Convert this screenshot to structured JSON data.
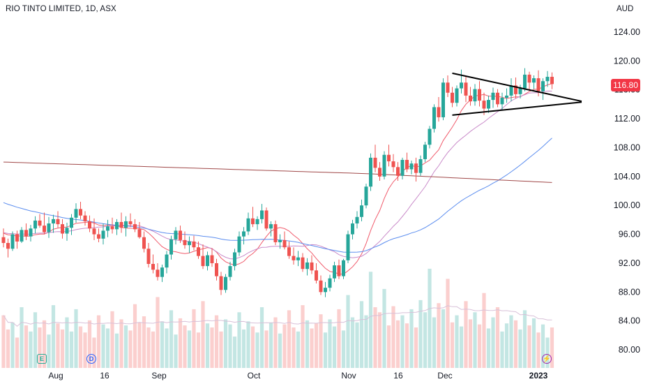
{
  "header": {
    "title": "RIO TINTO LIMITED, 1D, ASX",
    "currency": "AUD"
  },
  "last_price": "116.80",
  "events": {
    "earnings": "E",
    "dividend": "D"
  },
  "colors": {
    "up": "#26a69a",
    "down": "#ef5350",
    "ma10": "#f05a6b",
    "ma20": "#c98ac9",
    "ma50": "#5b8def",
    "ma200": "#a04848",
    "badge": "#f23645"
  },
  "chart_data": {
    "type": "candlestick",
    "y_axis": {
      "ticks": [
        "124.00",
        "120.00",
        "116.00",
        "112.00",
        "108.00",
        "104.00",
        "100.00",
        "96.00",
        "92.00",
        "88.00",
        "84.00",
        "80.00"
      ],
      "ylim": [
        77.5,
        126.5
      ],
      "position": "right"
    },
    "x_axis": {
      "ticks": [
        "Aug",
        "16",
        "Sep",
        "Oct",
        "Nov",
        "16",
        "Dec",
        "2023"
      ]
    },
    "candles": [
      [
        95.6,
        96.8,
        94.2,
        94.8
      ],
      [
        94.8,
        95.4,
        92.8,
        94.0
      ],
      [
        94.0,
        96.4,
        93.7,
        96.0
      ],
      [
        96.0,
        96.5,
        94.0,
        95.0
      ],
      [
        95.0,
        97.0,
        94.8,
        96.6
      ],
      [
        96.6,
        97.5,
        95.2,
        95.7
      ],
      [
        95.7,
        97.3,
        95.0,
        96.8
      ],
      [
        96.8,
        98.5,
        96.1,
        97.9
      ],
      [
        97.9,
        98.8,
        96.9,
        97.2
      ],
      [
        97.2,
        99.0,
        96.0,
        96.3
      ],
      [
        96.3,
        98.4,
        95.5,
        97.5
      ],
      [
        97.5,
        98.7,
        96.2,
        98.1
      ],
      [
        98.1,
        99.2,
        96.9,
        97.4
      ],
      [
        97.4,
        98.1,
        95.4,
        96.1
      ],
      [
        96.1,
        97.6,
        95.1,
        96.9
      ],
      [
        96.9,
        98.8,
        95.9,
        98.3
      ],
      [
        98.3,
        100.3,
        97.6,
        99.5
      ],
      [
        99.5,
        100.5,
        98.1,
        98.6
      ],
      [
        98.6,
        99.2,
        97.2,
        97.8
      ],
      [
        97.8,
        98.6,
        96.3,
        96.8
      ],
      [
        96.8,
        98.2,
        95.2,
        96.0
      ],
      [
        96.0,
        96.8,
        94.9,
        95.4
      ],
      [
        95.4,
        97.5,
        94.6,
        96.5
      ],
      [
        96.5,
        98.0,
        95.6,
        97.1
      ],
      [
        97.1,
        98.3,
        96.1,
        96.7
      ],
      [
        96.7,
        98.1,
        95.9,
        97.7
      ],
      [
        97.7,
        99.0,
        96.2,
        96.9
      ],
      [
        96.9,
        98.5,
        95.7,
        97.8
      ],
      [
        97.8,
        98.9,
        97.0,
        97.4
      ],
      [
        97.4,
        98.1,
        96.3,
        96.7
      ],
      [
        96.7,
        97.7,
        95.4,
        95.6
      ],
      [
        95.6,
        96.4,
        93.5,
        94.0
      ],
      [
        94.0,
        94.8,
        91.4,
        91.9
      ],
      [
        91.9,
        93.2,
        90.6,
        91.1
      ],
      [
        91.1,
        92.0,
        89.6,
        90.1
      ],
      [
        90.1,
        91.8,
        89.4,
        91.4
      ],
      [
        91.4,
        93.7,
        90.6,
        93.2
      ],
      [
        93.2,
        95.8,
        92.5,
        95.3
      ],
      [
        95.3,
        97.0,
        94.6,
        96.5
      ],
      [
        96.5,
        97.2,
        94.8,
        95.2
      ],
      [
        95.2,
        96.4,
        94.0,
        94.5
      ],
      [
        94.5,
        95.7,
        93.4,
        95.0
      ],
      [
        95.0,
        95.8,
        93.8,
        94.2
      ],
      [
        94.2,
        95.0,
        92.6,
        93.0
      ],
      [
        93.0,
        94.6,
        91.2,
        91.6
      ],
      [
        91.6,
        93.6,
        91.0,
        93.1
      ],
      [
        93.1,
        94.0,
        91.5,
        92.0
      ],
      [
        92.0,
        92.6,
        89.6,
        90.2
      ],
      [
        90.2,
        90.8,
        87.6,
        88.3
      ],
      [
        88.3,
        90.5,
        87.9,
        90.1
      ],
      [
        90.1,
        92.2,
        89.6,
        91.6
      ],
      [
        91.6,
        94.0,
        91.0,
        93.5
      ],
      [
        93.5,
        96.4,
        93.0,
        95.7
      ],
      [
        95.7,
        97.0,
        94.6,
        96.4
      ],
      [
        96.4,
        99.0,
        95.9,
        98.2
      ],
      [
        98.2,
        99.8,
        97.0,
        97.4
      ],
      [
        97.4,
        98.5,
        96.6,
        98.1
      ],
      [
        98.1,
        100.2,
        97.5,
        99.3
      ],
      [
        99.3,
        99.7,
        96.5,
        96.8
      ],
      [
        96.8,
        97.8,
        95.7,
        97.4
      ],
      [
        97.4,
        97.9,
        94.5,
        94.9
      ],
      [
        94.9,
        96.0,
        94.0,
        95.2
      ],
      [
        95.2,
        96.4,
        93.9,
        94.2
      ],
      [
        94.2,
        95.0,
        92.6,
        93.0
      ],
      [
        93.0,
        94.2,
        91.8,
        92.4
      ],
      [
        92.4,
        93.7,
        91.6,
        92.8
      ],
      [
        92.8,
        93.4,
        90.8,
        91.2
      ],
      [
        91.2,
        92.7,
        90.3,
        92.1
      ],
      [
        92.1,
        93.1,
        90.5,
        91.0
      ],
      [
        91.0,
        92.0,
        89.2,
        89.6
      ],
      [
        89.6,
        90.3,
        87.6,
        88.0
      ],
      [
        88.0,
        89.4,
        87.3,
        88.6
      ],
      [
        88.6,
        90.4,
        88.1,
        89.9
      ],
      [
        89.9,
        92.2,
        89.4,
        91.7
      ],
      [
        91.7,
        92.5,
        89.8,
        90.2
      ],
      [
        90.2,
        92.6,
        89.8,
        92.4
      ],
      [
        92.4,
        96.5,
        92.0,
        96.0
      ],
      [
        96.0,
        98.0,
        95.3,
        97.5
      ],
      [
        97.5,
        99.2,
        96.8,
        98.4
      ],
      [
        98.4,
        100.8,
        97.8,
        100.0
      ],
      [
        100.0,
        103.0,
        99.6,
        102.6
      ],
      [
        102.6,
        107.2,
        102.0,
        106.6
      ],
      [
        106.6,
        108.4,
        104.6,
        105.2
      ],
      [
        105.2,
        106.0,
        103.4,
        104.0
      ],
      [
        104.0,
        107.5,
        103.6,
        107.0
      ],
      [
        107.0,
        108.4,
        105.4,
        106.1
      ],
      [
        106.1,
        107.1,
        104.6,
        105.3
      ],
      [
        105.3,
        106.0,
        103.4,
        104.1
      ],
      [
        104.1,
        106.6,
        103.6,
        106.3
      ],
      [
        106.3,
        107.3,
        104.6,
        105.0
      ],
      [
        105.0,
        106.2,
        104.3,
        105.8
      ],
      [
        105.8,
        106.6,
        103.3,
        104.5
      ],
      [
        104.5,
        106.9,
        104.1,
        106.4
      ],
      [
        106.4,
        108.8,
        106.0,
        108.4
      ],
      [
        108.4,
        111.0,
        107.9,
        110.6
      ],
      [
        110.6,
        114.0,
        110.1,
        113.6
      ],
      [
        113.6,
        115.0,
        111.6,
        112.2
      ],
      [
        112.2,
        117.6,
        111.8,
        117.0
      ],
      [
        117.0,
        118.0,
        115.0,
        115.6
      ],
      [
        115.6,
        116.4,
        113.6,
        114.2
      ],
      [
        114.2,
        116.6,
        113.7,
        116.2
      ],
      [
        116.2,
        118.8,
        115.5,
        117.0
      ],
      [
        117.0,
        117.8,
        114.3,
        115.2
      ],
      [
        115.2,
        116.4,
        113.8,
        114.4
      ],
      [
        114.4,
        116.8,
        113.8,
        116.1
      ],
      [
        116.1,
        117.2,
        113.7,
        114.5
      ],
      [
        114.5,
        115.6,
        112.5,
        113.4
      ],
      [
        113.4,
        115.2,
        112.8,
        114.6
      ],
      [
        114.6,
        116.3,
        113.5,
        115.6
      ],
      [
        115.6,
        116.1,
        113.6,
        114.0
      ],
      [
        114.0,
        115.6,
        113.2,
        114.9
      ],
      [
        114.9,
        116.2,
        114.2,
        115.2
      ],
      [
        115.2,
        117.6,
        114.4,
        116.6
      ],
      [
        116.6,
        117.7,
        114.8,
        115.4
      ],
      [
        115.4,
        116.7,
        114.8,
        116.2
      ],
      [
        116.2,
        119.0,
        115.8,
        118.1
      ],
      [
        118.1,
        118.5,
        116.0,
        117.0
      ],
      [
        117.0,
        118.0,
        116.1,
        117.6
      ],
      [
        117.6,
        118.7,
        115.1,
        115.8
      ],
      [
        115.8,
        117.6,
        114.6,
        117.2
      ],
      [
        117.2,
        118.6,
        116.4,
        117.8
      ],
      [
        117.8,
        118.4,
        116.1,
        116.8
      ]
    ],
    "volume": [
      0.52,
      0.38,
      0.45,
      0.3,
      0.6,
      0.42,
      0.36,
      0.55,
      0.4,
      0.47,
      0.33,
      0.62,
      0.44,
      0.38,
      0.5,
      0.36,
      0.58,
      0.41,
      0.35,
      0.47,
      0.3,
      0.52,
      0.43,
      0.39,
      0.56,
      0.34,
      0.48,
      0.42,
      0.37,
      0.63,
      0.45,
      0.51,
      0.4,
      0.36,
      0.7,
      0.46,
      0.39,
      0.57,
      0.33,
      0.49,
      0.42,
      0.37,
      0.58,
      0.35,
      0.66,
      0.44,
      0.4,
      0.52,
      0.36,
      0.48,
      0.43,
      0.31,
      0.55,
      0.38,
      0.46,
      0.41,
      0.35,
      0.6,
      0.37,
      0.45,
      0.5,
      0.34,
      0.43,
      0.57,
      0.4,
      0.36,
      0.62,
      0.47,
      0.39,
      0.44,
      0.53,
      0.35,
      0.48,
      0.41,
      0.58,
      0.37,
      0.72,
      0.5,
      0.45,
      0.66,
      0.52,
      0.95,
      0.6,
      0.55,
      0.78,
      0.42,
      0.61,
      0.47,
      0.52,
      0.44,
      0.58,
      0.4,
      0.67,
      0.55,
      0.98,
      0.5,
      0.64,
      0.58,
      0.88,
      0.45,
      0.52,
      0.41,
      0.66,
      0.48,
      0.55,
      0.43,
      0.74,
      0.39,
      0.5,
      0.6,
      0.36,
      0.44,
      0.52,
      0.47,
      0.38,
      0.57,
      0.42,
      0.49,
      0.35,
      0.43,
      0.3,
      0.4
    ],
    "moving_averages": [
      {
        "period": 10,
        "color": "#f05a6b"
      },
      {
        "period": 20,
        "color": "#c98ac9"
      },
      {
        "period": 50,
        "color": "#5b8def"
      },
      {
        "period": 200,
        "color": "#a04848"
      }
    ],
    "pattern": {
      "type": "pennant",
      "upper": [
        [
          99,
          118.3
        ],
        [
          122,
          114.8
        ]
      ],
      "lower": [
        [
          99,
          112.5
        ],
        [
          122,
          114.1
        ]
      ]
    }
  }
}
